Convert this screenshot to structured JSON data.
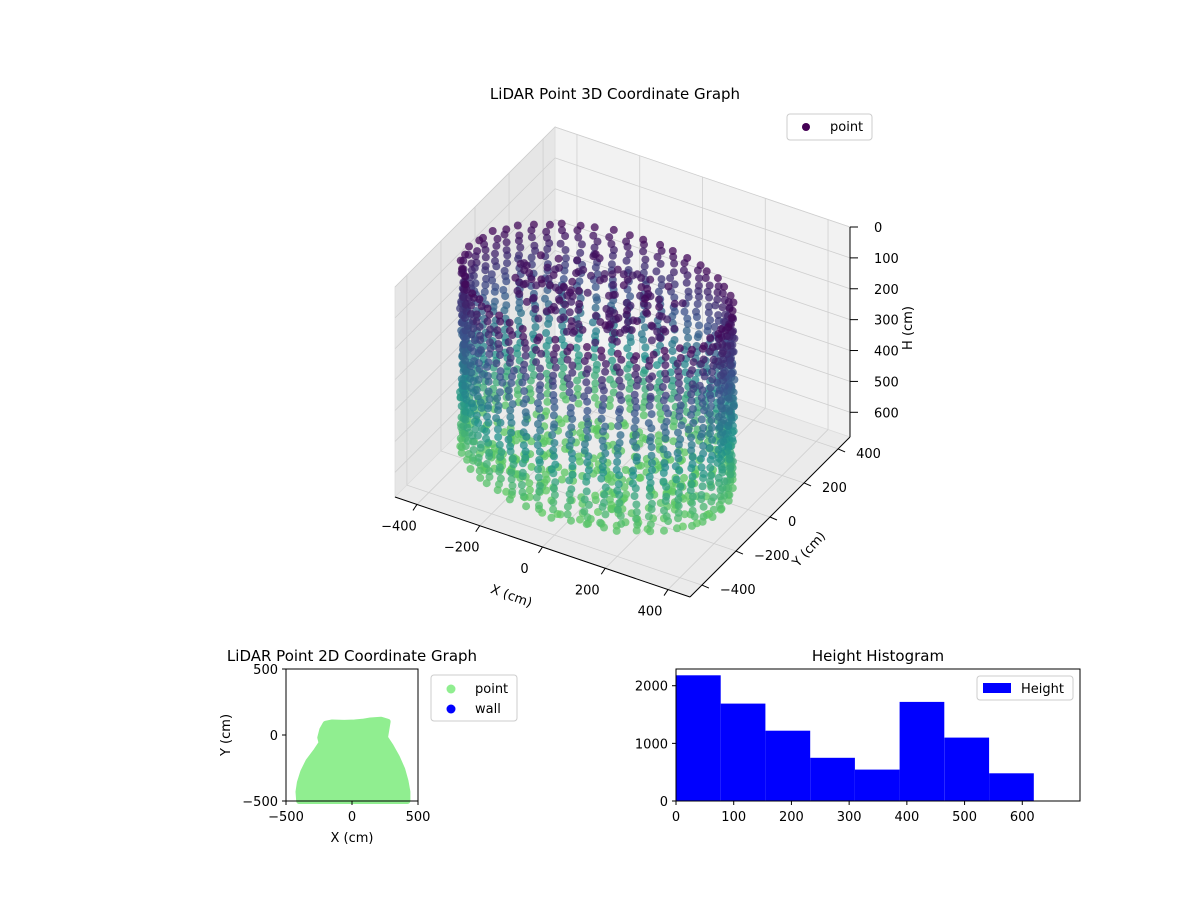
{
  "chart_data": [
    {
      "type": "scatter",
      "projection": "3d",
      "title": "LiDAR Point 3D Coordinate Graph",
      "xlabel": "X (cm)",
      "ylabel": "Y (cm)",
      "zlabel": "H (cm)",
      "x_ticks": [
        -400,
        -200,
        0,
        200,
        400
      ],
      "y_ticks": [
        -400,
        -200,
        0,
        200,
        400
      ],
      "z_ticks": [
        0,
        100,
        200,
        300,
        400,
        500,
        600
      ],
      "xlim": [
        -470,
        470
      ],
      "ylim": [
        -470,
        470
      ],
      "zlim": [
        680,
        0
      ],
      "z_inverted": true,
      "colormap": "viridis",
      "series": [
        {
          "name": "point",
          "color": "#440154"
        }
      ],
      "shape": {
        "description_free": true,
        "wall_radius_x": [
          -420,
          420
        ],
        "wall_radius_y": [
          -440,
          130
        ],
        "height_range": [
          0,
          620
        ]
      },
      "legend": "top-right",
      "grid": true
    },
    {
      "type": "scatter",
      "title": "LiDAR Point 2D Coordinate Graph",
      "xlabel": "X (cm)",
      "ylabel": "Y (cm)",
      "xlim": [
        -500,
        500
      ],
      "ylim": [
        -500,
        500
      ],
      "x_ticks": [
        -500,
        0,
        500
      ],
      "y_ticks": [
        500,
        0,
        -500
      ],
      "series": [
        {
          "name": "point",
          "color": "#90ee90"
        },
        {
          "name": "wall",
          "color": "#0000ff"
        }
      ],
      "outline": [
        [
          -400,
          -500
        ],
        [
          -405,
          -430
        ],
        [
          -395,
          -360
        ],
        [
          -370,
          -280
        ],
        [
          -330,
          -200
        ],
        [
          -270,
          -120
        ],
        [
          -230,
          -60
        ],
        [
          -240,
          -20
        ],
        [
          -225,
          40
        ],
        [
          -200,
          85
        ],
        [
          -150,
          95
        ],
        [
          -60,
          92
        ],
        [
          20,
          95
        ],
        [
          80,
          100
        ],
        [
          140,
          110
        ],
        [
          220,
          115
        ],
        [
          270,
          100
        ],
        [
          260,
          40
        ],
        [
          250,
          -20
        ],
        [
          290,
          -80
        ],
        [
          340,
          -170
        ],
        [
          380,
          -260
        ],
        [
          405,
          -350
        ],
        [
          420,
          -430
        ],
        [
          420,
          -500
        ]
      ],
      "legend": "outside-right",
      "grid": false
    },
    {
      "type": "bar",
      "histogram": true,
      "title": "Height Histogram",
      "xlabel": "",
      "ylabel": "",
      "bin_edges": [
        0,
        77.5,
        155,
        232.5,
        310,
        387.5,
        465,
        542.5,
        620
      ],
      "values": [
        2180,
        1690,
        1220,
        750,
        545,
        1720,
        1100,
        480
      ],
      "xlim": [
        0,
        700
      ],
      "ylim": [
        0,
        2290
      ],
      "x_ticks": [
        0,
        100,
        200,
        300,
        400,
        500,
        600
      ],
      "y_ticks": [
        0,
        1000,
        2000
      ],
      "series": [
        {
          "name": "Height",
          "color": "#0000ff"
        }
      ],
      "legend": "top-right",
      "grid": false
    }
  ]
}
